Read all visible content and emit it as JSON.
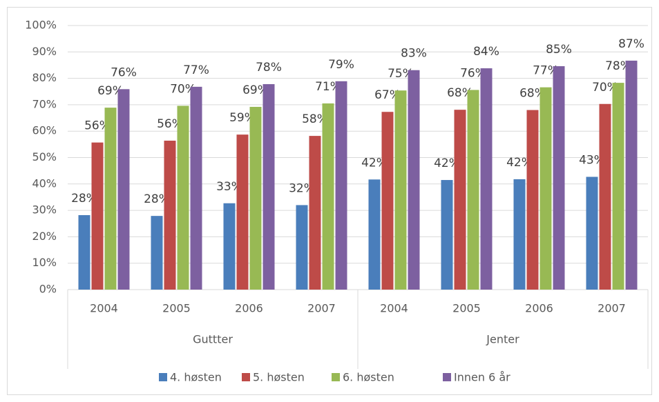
{
  "chart_data": {
    "type": "bar",
    "categories": [
      "2004",
      "2005",
      "2006",
      "2007",
      "2004",
      "2005",
      "2006",
      "2007"
    ],
    "groups": [
      "Guttter",
      "Jenter"
    ],
    "series": [
      {
        "name": "4. høsten",
        "color": "#4a7ebb",
        "values": [
          28.2,
          27.9,
          32.7,
          32.0,
          41.7,
          41.5,
          41.8,
          42.7
        ],
        "value_labels": [
          "28%",
          "28%",
          "33%",
          "32%",
          "42%",
          "42%",
          "42%",
          "43%"
        ]
      },
      {
        "name": "5. høsten",
        "color": "#be4b48",
        "values": [
          55.7,
          56.4,
          58.7,
          58.2,
          67.3,
          68.1,
          68.0,
          70.3
        ],
        "value_labels": [
          "56%",
          "56%",
          "59%",
          "58%",
          "67%",
          "68%",
          "68%",
          "70%"
        ]
      },
      {
        "name": "6. høsten",
        "color": "#98b954",
        "values": [
          68.9,
          69.6,
          69.2,
          70.5,
          75.4,
          75.6,
          76.6,
          78.3
        ],
        "value_labels": [
          "69%",
          "70%",
          "69%",
          "71%",
          "75%",
          "76%",
          "77%",
          "78%"
        ]
      },
      {
        "name": "Innen 6 år",
        "color": "#7d60a0",
        "values": [
          75.9,
          76.8,
          77.8,
          78.9,
          83.1,
          83.8,
          84.6,
          86.7
        ],
        "value_labels": [
          "76%",
          "77%",
          "78%",
          "79%",
          "83%",
          "84%",
          "85%",
          "87%"
        ]
      }
    ],
    "ylim": [
      0,
      100
    ],
    "yticks": [
      {
        "value": 0,
        "label": "0%"
      },
      {
        "value": 10,
        "label": "10%"
      },
      {
        "value": 20,
        "label": "20%"
      },
      {
        "value": 30,
        "label": "30%"
      },
      {
        "value": 40,
        "label": "40%"
      },
      {
        "value": 50,
        "label": "50%"
      },
      {
        "value": 60,
        "label": "60%"
      },
      {
        "value": 70,
        "label": "70%"
      },
      {
        "value": 80,
        "label": "80%"
      },
      {
        "value": 90,
        "label": "90%"
      },
      {
        "value": 100,
        "label": "100%"
      }
    ],
    "grid": true,
    "legend": "bottom"
  }
}
